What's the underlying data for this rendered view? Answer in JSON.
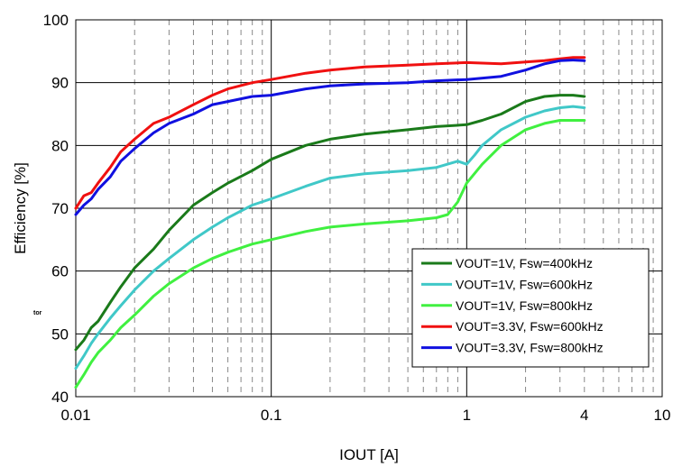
{
  "chart_data": {
    "type": "line",
    "xlabel": "IOUT [A]",
    "ylabel": "Efficiency [%]",
    "x_scale": "log",
    "xlim": [
      0.01,
      10
    ],
    "ylim": [
      40,
      100
    ],
    "x_tick_labels": [
      "0.01",
      "0.1",
      "1",
      "4",
      "10"
    ],
    "y_tick_labels": [
      "40",
      "50",
      "60",
      "70",
      "80",
      "90",
      "100"
    ],
    "grid": true,
    "legend_position": "bottom-right",
    "side_note": "tor",
    "series": [
      {
        "name": "VOUT=1V, Fsw=400kHz",
        "color": "#1a7a1a",
        "x": [
          0.01,
          0.011,
          0.012,
          0.013,
          0.015,
          0.017,
          0.02,
          0.025,
          0.03,
          0.04,
          0.05,
          0.06,
          0.08,
          0.1,
          0.15,
          0.2,
          0.3,
          0.5,
          0.7,
          1.0,
          1.2,
          1.5,
          2.0,
          2.5,
          3.0,
          3.5,
          4.0
        ],
        "y": [
          47.5,
          49.0,
          51.0,
          52.0,
          55.0,
          57.5,
          60.5,
          63.5,
          66.5,
          70.5,
          72.5,
          74.0,
          76.0,
          77.8,
          80.0,
          81.0,
          81.8,
          82.5,
          83.0,
          83.3,
          84.0,
          85.0,
          87.0,
          87.8,
          88.0,
          88.0,
          87.8
        ]
      },
      {
        "name": "VOUT=1V, Fsw=600kHz",
        "color": "#40c8c8",
        "x": [
          0.01,
          0.011,
          0.012,
          0.013,
          0.015,
          0.017,
          0.02,
          0.025,
          0.03,
          0.04,
          0.05,
          0.06,
          0.08,
          0.1,
          0.15,
          0.2,
          0.3,
          0.5,
          0.7,
          0.9,
          1.0,
          1.1,
          1.2,
          1.5,
          2.0,
          2.5,
          3.0,
          3.5,
          4.0
        ],
        "y": [
          44.5,
          46.5,
          48.5,
          50.0,
          52.5,
          54.5,
          57.0,
          60.0,
          62.0,
          65.0,
          67.0,
          68.5,
          70.5,
          71.5,
          73.5,
          74.8,
          75.5,
          76.0,
          76.5,
          77.5,
          77.0,
          78.5,
          80.0,
          82.5,
          84.5,
          85.5,
          86.0,
          86.2,
          86.0
        ]
      },
      {
        "name": "VOUT=1V, Fsw=800kHz",
        "color": "#40f040",
        "x": [
          0.01,
          0.011,
          0.012,
          0.013,
          0.015,
          0.017,
          0.02,
          0.025,
          0.03,
          0.04,
          0.05,
          0.06,
          0.08,
          0.1,
          0.15,
          0.2,
          0.3,
          0.5,
          0.7,
          0.8,
          0.9,
          1.0,
          1.2,
          1.5,
          2.0,
          2.5,
          3.0,
          3.5,
          4.0
        ],
        "y": [
          41.5,
          43.5,
          45.5,
          47.0,
          49.0,
          51.0,
          53.0,
          56.0,
          58.0,
          60.5,
          62.0,
          63.0,
          64.3,
          65.0,
          66.3,
          67.0,
          67.5,
          68.0,
          68.5,
          69.0,
          71.0,
          74.0,
          77.0,
          80.0,
          82.5,
          83.5,
          84.0,
          84.0,
          84.0
        ]
      },
      {
        "name": "VOUT=3.3V, Fsw=600kHz",
        "color": "#f01010",
        "x": [
          0.01,
          0.011,
          0.012,
          0.013,
          0.015,
          0.017,
          0.02,
          0.025,
          0.03,
          0.04,
          0.05,
          0.06,
          0.08,
          0.1,
          0.15,
          0.2,
          0.3,
          0.5,
          0.7,
          1.0,
          1.5,
          2.0,
          2.5,
          3.0,
          3.5,
          4.0
        ],
        "y": [
          70.0,
          72.0,
          72.5,
          74.0,
          76.5,
          79.0,
          81.0,
          83.5,
          84.5,
          86.5,
          88.0,
          89.0,
          90.0,
          90.5,
          91.5,
          92.0,
          92.5,
          92.8,
          93.0,
          93.2,
          93.0,
          93.3,
          93.5,
          93.8,
          94.0,
          94.0
        ]
      },
      {
        "name": "VOUT=3.3V, Fsw=800kHz",
        "color": "#1010e0",
        "x": [
          0.01,
          0.011,
          0.012,
          0.013,
          0.015,
          0.017,
          0.02,
          0.025,
          0.03,
          0.04,
          0.05,
          0.06,
          0.08,
          0.1,
          0.15,
          0.2,
          0.3,
          0.5,
          0.7,
          1.0,
          1.5,
          2.0,
          2.5,
          3.0,
          3.5,
          4.0
        ],
        "y": [
          69.0,
          70.5,
          71.5,
          73.0,
          75.0,
          77.5,
          79.5,
          82.0,
          83.5,
          85.0,
          86.5,
          87.0,
          87.8,
          88.0,
          89.0,
          89.5,
          89.8,
          90.0,
          90.3,
          90.5,
          91.0,
          92.0,
          93.0,
          93.5,
          93.6,
          93.5
        ]
      }
    ]
  }
}
